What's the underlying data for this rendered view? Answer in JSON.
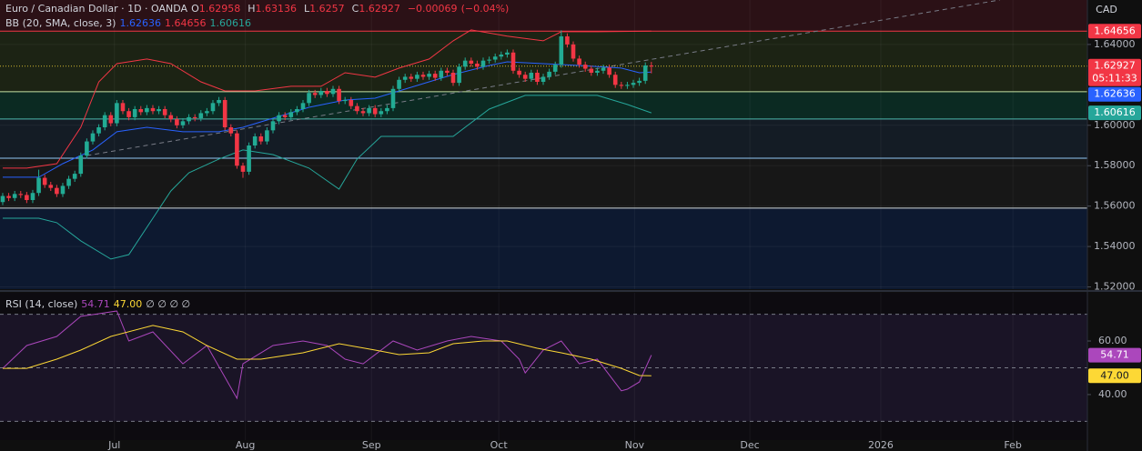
{
  "chart_data": [
    {
      "type": "candlestick",
      "title": "Euro / Canadian Dollar · 1D · OANDA",
      "currency": "CAD",
      "ohlc_labels": [
        "O",
        "H",
        "L",
        "C"
      ],
      "change": {
        "value": -0.00069,
        "label": "−0.00069"
      },
      "change_pct": {
        "value": -0.04,
        "label": "(−0.04%)"
      },
      "countdown": "05:11:33",
      "open": [
        1.562,
        1.565,
        1.564,
        1.566,
        1.5655,
        1.563,
        1.5665,
        1.574,
        1.5705,
        1.569,
        1.566,
        1.57,
        1.5735,
        1.576,
        1.585,
        1.592,
        1.596,
        1.599,
        1.605,
        1.601,
        1.611,
        1.607,
        1.604,
        1.608,
        1.6065,
        1.6085,
        1.607,
        1.608,
        1.605,
        1.603,
        1.6,
        1.602,
        1.604,
        1.6035,
        1.606,
        1.607,
        1.611,
        1.6125,
        1.599,
        1.596,
        1.58,
        1.577,
        1.59,
        1.5945,
        1.592,
        1.5975,
        1.602,
        1.605,
        1.604,
        1.6065,
        1.608,
        1.611,
        1.616,
        1.615,
        1.617,
        1.6155,
        1.618,
        1.612,
        1.6125,
        1.6095,
        1.607,
        1.606,
        1.6085,
        1.6055,
        1.607,
        1.6085,
        1.618,
        1.6225,
        1.624,
        1.623,
        1.625,
        1.624,
        1.6255,
        1.6235,
        1.627,
        1.626,
        1.621,
        1.629,
        1.632,
        1.6305,
        1.629,
        1.632,
        1.6325,
        1.634,
        1.635,
        1.636,
        1.627,
        1.625,
        1.623,
        1.626,
        1.6215,
        1.624,
        1.6265,
        1.63,
        1.644,
        1.64,
        1.633,
        1.63,
        1.628,
        1.626,
        1.627,
        1.6285,
        1.625,
        1.62,
        1.6195,
        1.62,
        1.621,
        1.622,
        1.62958
      ],
      "high": [
        1.5665,
        1.5665,
        1.5675,
        1.5675,
        1.567,
        1.568,
        1.578,
        1.5755,
        1.572,
        1.5705,
        1.5715,
        1.575,
        1.5775,
        1.5865,
        1.5935,
        1.5975,
        1.6005,
        1.6065,
        1.6065,
        1.6125,
        1.6125,
        1.6085,
        1.6095,
        1.6095,
        1.61,
        1.61,
        1.6095,
        1.6095,
        1.6065,
        1.6045,
        1.6035,
        1.6055,
        1.6055,
        1.6075,
        1.6085,
        1.6125,
        1.614,
        1.614,
        1.6005,
        1.5975,
        1.5815,
        1.5915,
        1.596,
        1.596,
        1.599,
        1.6035,
        1.6065,
        1.6065,
        1.608,
        1.6095,
        1.6125,
        1.6175,
        1.6175,
        1.6185,
        1.6185,
        1.6195,
        1.6195,
        1.614,
        1.614,
        1.611,
        1.6085,
        1.61,
        1.61,
        1.6085,
        1.61,
        1.6195,
        1.624,
        1.6255,
        1.6255,
        1.6265,
        1.6265,
        1.627,
        1.627,
        1.6285,
        1.6285,
        1.6275,
        1.6305,
        1.6335,
        1.6335,
        1.632,
        1.6335,
        1.634,
        1.6355,
        1.6365,
        1.6375,
        1.6375,
        1.6285,
        1.6265,
        1.6275,
        1.6275,
        1.6255,
        1.628,
        1.6315,
        1.647,
        1.6455,
        1.6415,
        1.6345,
        1.6315,
        1.6295,
        1.6285,
        1.63,
        1.63,
        1.6265,
        1.6215,
        1.6215,
        1.6225,
        1.6235,
        1.6311,
        1.63136
      ],
      "low": [
        1.5605,
        1.5625,
        1.5625,
        1.564,
        1.5615,
        1.5615,
        1.565,
        1.569,
        1.5675,
        1.5645,
        1.5645,
        1.5685,
        1.572,
        1.5745,
        1.5835,
        1.5905,
        1.5945,
        1.5975,
        1.5995,
        1.5995,
        1.6055,
        1.6025,
        1.6025,
        1.605,
        1.605,
        1.6055,
        1.6055,
        1.6035,
        1.6015,
        1.5985,
        1.5985,
        1.6005,
        1.602,
        1.602,
        1.6045,
        1.6055,
        1.6095,
        1.5975,
        1.5945,
        1.5785,
        1.574,
        1.5755,
        1.5885,
        1.5905,
        1.5905,
        1.596,
        1.6005,
        1.6025,
        1.6025,
        1.605,
        1.6065,
        1.6095,
        1.6135,
        1.6135,
        1.614,
        1.614,
        1.6105,
        1.6105,
        1.608,
        1.6055,
        1.6045,
        1.6045,
        1.604,
        1.604,
        1.6055,
        1.607,
        1.6165,
        1.621,
        1.6215,
        1.6215,
        1.6225,
        1.6225,
        1.622,
        1.622,
        1.6245,
        1.6195,
        1.6195,
        1.6275,
        1.629,
        1.6275,
        1.6275,
        1.6305,
        1.631,
        1.6325,
        1.6335,
        1.6255,
        1.6235,
        1.6215,
        1.6215,
        1.62,
        1.62,
        1.6225,
        1.625,
        1.6285,
        1.6385,
        1.6315,
        1.6285,
        1.6265,
        1.6245,
        1.6245,
        1.6255,
        1.6235,
        1.6185,
        1.618,
        1.618,
        1.6185,
        1.6195,
        1.6205,
        1.6257
      ],
      "close": [
        1.565,
        1.564,
        1.566,
        1.5655,
        1.563,
        1.5665,
        1.574,
        1.5705,
        1.569,
        1.566,
        1.57,
        1.5735,
        1.576,
        1.585,
        1.592,
        1.596,
        1.599,
        1.605,
        1.601,
        1.611,
        1.607,
        1.604,
        1.608,
        1.6065,
        1.6085,
        1.607,
        1.608,
        1.605,
        1.603,
        1.6,
        1.602,
        1.604,
        1.6035,
        1.606,
        1.607,
        1.611,
        1.6125,
        1.599,
        1.596,
        1.58,
        1.577,
        1.59,
        1.5945,
        1.592,
        1.5975,
        1.602,
        1.605,
        1.604,
        1.6065,
        1.608,
        1.611,
        1.616,
        1.615,
        1.617,
        1.6155,
        1.618,
        1.612,
        1.6125,
        1.6095,
        1.607,
        1.606,
        1.6085,
        1.6055,
        1.607,
        1.6085,
        1.618,
        1.6225,
        1.624,
        1.623,
        1.625,
        1.624,
        1.6255,
        1.6235,
        1.627,
        1.626,
        1.621,
        1.629,
        1.632,
        1.6305,
        1.629,
        1.632,
        1.6325,
        1.634,
        1.635,
        1.636,
        1.627,
        1.625,
        1.623,
        1.626,
        1.6215,
        1.624,
        1.6265,
        1.63,
        1.644,
        1.64,
        1.633,
        1.63,
        1.628,
        1.626,
        1.627,
        1.6285,
        1.625,
        1.62,
        1.6195,
        1.62,
        1.621,
        1.622,
        1.6296,
        1.62927
      ],
      "up_color": "#22ab94",
      "down_color": "#f23645",
      "indicator": "BB (20, SMA, close, 3)",
      "series": [
        {
          "color": "#2962ff",
          "x": [
            0,
            6,
            10,
            15,
            19,
            24,
            30,
            36,
            40,
            45,
            51,
            57,
            62,
            66,
            71,
            75,
            81,
            84,
            90,
            96,
            103,
            106,
            108
          ],
          "values": [
            1.5743,
            1.5743,
            1.581,
            1.5878,
            1.5968,
            1.599,
            1.5968,
            1.5968,
            1.599,
            1.6035,
            1.6089,
            1.6125,
            1.6134,
            1.617,
            1.6215,
            1.6251,
            1.6296,
            1.6314,
            1.6305,
            1.6296,
            1.6283,
            1.626,
            1.62636
          ]
        },
        {
          "color": "#f23645",
          "x": [
            0,
            4,
            9,
            13,
            16,
            19,
            24,
            28,
            33,
            37,
            42,
            48,
            53,
            57,
            62,
            66,
            71,
            75,
            78,
            84,
            90,
            93,
            99,
            108
          ],
          "values": [
            1.5788,
            1.5788,
            1.581,
            1.599,
            1.6215,
            1.6305,
            1.6328,
            1.6305,
            1.6215,
            1.617,
            1.617,
            1.6193,
            1.6193,
            1.626,
            1.6238,
            1.6283,
            1.6328,
            1.6418,
            1.6472,
            1.6441,
            1.6418,
            1.6463,
            1.6463,
            1.64656
          ]
        },
        {
          "color": "#26a69a",
          "x": [
            0,
            6,
            9,
            13,
            18,
            21,
            25,
            28,
            31,
            36,
            40,
            45,
            51,
            56,
            59,
            63,
            69,
            75,
            81,
            87,
            93,
            99,
            104,
            108
          ],
          "values": [
            1.554,
            1.554,
            1.5518,
            1.5428,
            1.5338,
            1.536,
            1.554,
            1.5675,
            1.5765,
            1.5833,
            1.5878,
            1.5855,
            1.5788,
            1.5684,
            1.5833,
            1.5945,
            1.5945,
            1.5945,
            1.608,
            1.6148,
            1.6148,
            1.6148,
            1.6103,
            1.60616
          ]
        }
      ],
      "levels": [
        1.64656,
        1.6166,
        1.6031,
        1.5837,
        1.559
      ],
      "level_colors": [
        "#f23645",
        "#c5e1a5",
        "#4db6ac",
        "#90caf9",
        "#cfd8dc"
      ],
      "zone_colors": [
        "#2b1116",
        "#1c2314",
        "#0b2a22",
        "#141c25",
        "#171717",
        "#0d1930"
      ],
      "trendline": {
        "x": [
          14,
          166
        ],
        "y": [
          1.585,
          1.662
        ]
      },
      "xlim": [
        -0.45,
        180.6
      ],
      "ylim": [
        1.5189,
        1.662
      ],
      "yticks": [
        {
          "value": 1.64,
          "label": "1.64000"
        },
        {
          "value": 1.6,
          "label": "1.60000"
        },
        {
          "value": 1.58,
          "label": "1.58000"
        },
        {
          "value": 1.56,
          "label": "1.56000"
        },
        {
          "value": 1.54,
          "label": "1.54000"
        },
        {
          "value": 1.52,
          "label": "1.52000"
        }
      ]
    },
    {
      "type": "line",
      "title": "RSI (14, close)",
      "symbols": "∅ ∅ ∅ ∅",
      "series": [
        {
          "color": "#ab47bc",
          "x": [
            0,
            4,
            9,
            13,
            16,
            19,
            21,
            25,
            30,
            34,
            39,
            40,
            45,
            50,
            54,
            57,
            60,
            65,
            69,
            74,
            78,
            83,
            86,
            87,
            90,
            93,
            96,
            99,
            103,
            104,
            106,
            108
          ],
          "values": [
            49.8,
            58.3,
            61.7,
            69.2,
            70.2,
            71.2,
            60,
            63.4,
            51.5,
            58.3,
            38.6,
            51.5,
            58.3,
            60,
            58.3,
            53.2,
            51.5,
            60,
            56.6,
            60,
            61.7,
            60,
            53.2,
            48.1,
            56.6,
            60,
            51.5,
            53.2,
            41.4,
            42.0,
            44.7,
            54.71
          ]
        },
        {
          "color": "#fdd835",
          "x": [
            0,
            4,
            9,
            13,
            18,
            25,
            30,
            34,
            39,
            43,
            50,
            56,
            62,
            66,
            71,
            75,
            80,
            84,
            89,
            93,
            98,
            103,
            106,
            108
          ],
          "values": [
            49.8,
            49.8,
            53.2,
            56.6,
            61.7,
            65.8,
            63.4,
            58.3,
            53.2,
            53.2,
            55.6,
            59.0,
            56.6,
            54.9,
            55.6,
            59.0,
            60,
            60,
            57.3,
            55.6,
            53.2,
            49.8,
            47.1,
            47
          ],
          "value_labels": [
            null,
            null,
            null,
            null,
            null,
            null,
            null,
            null,
            null,
            null,
            null,
            null,
            null,
            null,
            null,
            null,
            null,
            null,
            null,
            null,
            null,
            null,
            null,
            "47.00"
          ]
        }
      ],
      "levels": [
        70,
        50,
        30
      ],
      "band_color": "#7e57c2",
      "xlim": [
        -0.45,
        180.6
      ],
      "ylim": [
        23,
        78
      ],
      "yticks": [
        {
          "value": 60,
          "label": "60.00"
        },
        {
          "value": 40,
          "label": "40.00"
        }
      ],
      "xticks": [
        {
          "value": 18.6,
          "label": "Jul"
        },
        {
          "value": 40.4,
          "label": "Aug"
        },
        {
          "value": 61.4,
          "label": "Sep"
        },
        {
          "value": 82.6,
          "label": "Oct"
        },
        {
          "value": 105.2,
          "label": "Nov"
        },
        {
          "value": 124.4,
          "label": "Dec"
        },
        {
          "value": 146.2,
          "label": "2026"
        },
        {
          "value": 168.2,
          "label": "Feb"
        }
      ]
    }
  ]
}
